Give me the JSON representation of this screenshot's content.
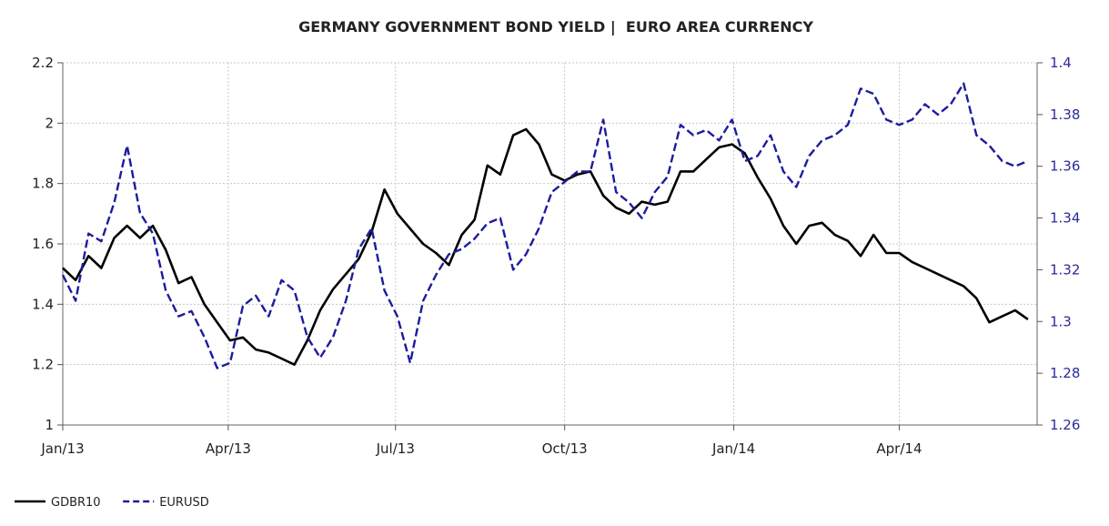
{
  "chart_data": {
    "type": "line",
    "title": "GERMANY GOVERNMENT BOND YIELD |  EURO AREA CURRENCY",
    "x_tick_labels": [
      "Jan/13",
      "Apr/13",
      "Jul/13",
      "Oct/13",
      "Jan/14",
      "Apr/14"
    ],
    "x_range": [
      "2013-01-01",
      "2014-06-15"
    ],
    "left_axis": {
      "ticks": [
        "1",
        "1.2",
        "1.4",
        "1.6",
        "1.8",
        "2",
        "2.2"
      ],
      "ylim": [
        1,
        2.2
      ]
    },
    "right_axis": {
      "ticks": [
        "1.26",
        "1.28",
        "1.3",
        "1.32",
        "1.34",
        "1.36",
        "1.38",
        "1.4"
      ],
      "ylim": [
        1.26,
        1.4
      ]
    },
    "grid": true,
    "legend_position": "bottom-left",
    "series": [
      {
        "name": "GDBR10",
        "axis": "left",
        "color": "#000000",
        "style": "solid",
        "points": [
          [
            "2013-01-01",
            1.52
          ],
          [
            "2013-01-08",
            1.48
          ],
          [
            "2013-01-15",
            1.56
          ],
          [
            "2013-01-22",
            1.52
          ],
          [
            "2013-01-29",
            1.62
          ],
          [
            "2013-02-05",
            1.66
          ],
          [
            "2013-02-12",
            1.62
          ],
          [
            "2013-02-19",
            1.66
          ],
          [
            "2013-02-26",
            1.58
          ],
          [
            "2013-03-05",
            1.47
          ],
          [
            "2013-03-12",
            1.49
          ],
          [
            "2013-03-19",
            1.4
          ],
          [
            "2013-03-26",
            1.34
          ],
          [
            "2013-04-02",
            1.28
          ],
          [
            "2013-04-09",
            1.29
          ],
          [
            "2013-04-16",
            1.25
          ],
          [
            "2013-04-23",
            1.24
          ],
          [
            "2013-04-30",
            1.22
          ],
          [
            "2013-05-07",
            1.2
          ],
          [
            "2013-05-14",
            1.28
          ],
          [
            "2013-05-21",
            1.38
          ],
          [
            "2013-05-28",
            1.45
          ],
          [
            "2013-06-04",
            1.5
          ],
          [
            "2013-06-11",
            1.55
          ],
          [
            "2013-06-18",
            1.64
          ],
          [
            "2013-06-25",
            1.78
          ],
          [
            "2013-07-02",
            1.7
          ],
          [
            "2013-07-09",
            1.65
          ],
          [
            "2013-07-16",
            1.6
          ],
          [
            "2013-07-23",
            1.57
          ],
          [
            "2013-07-30",
            1.53
          ],
          [
            "2013-08-06",
            1.63
          ],
          [
            "2013-08-13",
            1.68
          ],
          [
            "2013-08-20",
            1.86
          ],
          [
            "2013-08-27",
            1.83
          ],
          [
            "2013-09-03",
            1.96
          ],
          [
            "2013-09-10",
            1.98
          ],
          [
            "2013-09-17",
            1.93
          ],
          [
            "2013-09-24",
            1.83
          ],
          [
            "2013-10-01",
            1.81
          ],
          [
            "2013-10-08",
            1.83
          ],
          [
            "2013-10-15",
            1.84
          ],
          [
            "2013-10-22",
            1.76
          ],
          [
            "2013-10-29",
            1.72
          ],
          [
            "2013-11-05",
            1.7
          ],
          [
            "2013-11-12",
            1.74
          ],
          [
            "2013-11-19",
            1.73
          ],
          [
            "2013-11-26",
            1.74
          ],
          [
            "2013-12-03",
            1.84
          ],
          [
            "2013-12-10",
            1.84
          ],
          [
            "2013-12-17",
            1.88
          ],
          [
            "2013-12-24",
            1.92
          ],
          [
            "2013-12-31",
            1.93
          ],
          [
            "2014-01-07",
            1.9
          ],
          [
            "2014-01-14",
            1.82
          ],
          [
            "2014-01-21",
            1.75
          ],
          [
            "2014-01-28",
            1.66
          ],
          [
            "2014-02-04",
            1.6
          ],
          [
            "2014-02-11",
            1.66
          ],
          [
            "2014-02-18",
            1.67
          ],
          [
            "2014-02-25",
            1.63
          ],
          [
            "2014-03-04",
            1.61
          ],
          [
            "2014-03-11",
            1.56
          ],
          [
            "2014-03-18",
            1.63
          ],
          [
            "2014-03-25",
            1.57
          ],
          [
            "2014-04-01",
            1.57
          ],
          [
            "2014-04-08",
            1.54
          ],
          [
            "2014-04-15",
            1.52
          ],
          [
            "2014-04-22",
            1.5
          ],
          [
            "2014-04-29",
            1.48
          ],
          [
            "2014-05-06",
            1.46
          ],
          [
            "2014-05-13",
            1.42
          ],
          [
            "2014-05-20",
            1.34
          ],
          [
            "2014-05-27",
            1.36
          ],
          [
            "2014-06-03",
            1.38
          ],
          [
            "2014-06-10",
            1.35
          ]
        ]
      },
      {
        "name": "EURUSD",
        "axis": "right",
        "color": "#1c1c9c",
        "style": "dashed",
        "points": [
          [
            "2013-01-01",
            1.318
          ],
          [
            "2013-01-08",
            1.308
          ],
          [
            "2013-01-15",
            1.334
          ],
          [
            "2013-01-22",
            1.331
          ],
          [
            "2013-01-29",
            1.346
          ],
          [
            "2013-02-05",
            1.368
          ],
          [
            "2013-02-12",
            1.342
          ],
          [
            "2013-02-19",
            1.334
          ],
          [
            "2013-02-26",
            1.312
          ],
          [
            "2013-03-05",
            1.302
          ],
          [
            "2013-03-12",
            1.304
          ],
          [
            "2013-03-19",
            1.294
          ],
          [
            "2013-03-26",
            1.282
          ],
          [
            "2013-04-02",
            1.284
          ],
          [
            "2013-04-09",
            1.306
          ],
          [
            "2013-04-16",
            1.31
          ],
          [
            "2013-04-23",
            1.302
          ],
          [
            "2013-04-30",
            1.316
          ],
          [
            "2013-05-07",
            1.312
          ],
          [
            "2013-05-14",
            1.294
          ],
          [
            "2013-05-21",
            1.286
          ],
          [
            "2013-05-28",
            1.294
          ],
          [
            "2013-06-04",
            1.308
          ],
          [
            "2013-06-11",
            1.328
          ],
          [
            "2013-06-18",
            1.336
          ],
          [
            "2013-06-25",
            1.312
          ],
          [
            "2013-07-02",
            1.302
          ],
          [
            "2013-07-09",
            1.284
          ],
          [
            "2013-07-16",
            1.308
          ],
          [
            "2013-07-23",
            1.318
          ],
          [
            "2013-07-30",
            1.326
          ],
          [
            "2013-08-06",
            1.328
          ],
          [
            "2013-08-13",
            1.332
          ],
          [
            "2013-08-20",
            1.338
          ],
          [
            "2013-08-27",
            1.34
          ],
          [
            "2013-09-03",
            1.32
          ],
          [
            "2013-09-10",
            1.326
          ],
          [
            "2013-09-17",
            1.336
          ],
          [
            "2013-09-24",
            1.35
          ],
          [
            "2013-10-01",
            1.354
          ],
          [
            "2013-10-08",
            1.358
          ],
          [
            "2013-10-15",
            1.358
          ],
          [
            "2013-10-22",
            1.378
          ],
          [
            "2013-10-29",
            1.35
          ],
          [
            "2013-11-05",
            1.346
          ],
          [
            "2013-11-12",
            1.34
          ],
          [
            "2013-11-19",
            1.35
          ],
          [
            "2013-11-26",
            1.356
          ],
          [
            "2013-12-03",
            1.376
          ],
          [
            "2013-12-10",
            1.372
          ],
          [
            "2013-12-17",
            1.374
          ],
          [
            "2013-12-24",
            1.37
          ],
          [
            "2013-12-31",
            1.378
          ],
          [
            "2014-01-07",
            1.362
          ],
          [
            "2014-01-14",
            1.364
          ],
          [
            "2014-01-21",
            1.372
          ],
          [
            "2014-01-28",
            1.358
          ],
          [
            "2014-02-04",
            1.352
          ],
          [
            "2014-02-11",
            1.364
          ],
          [
            "2014-02-18",
            1.37
          ],
          [
            "2014-02-25",
            1.372
          ],
          [
            "2014-03-04",
            1.376
          ],
          [
            "2014-03-11",
            1.39
          ],
          [
            "2014-03-18",
            1.388
          ],
          [
            "2014-03-25",
            1.378
          ],
          [
            "2014-04-01",
            1.376
          ],
          [
            "2014-04-08",
            1.378
          ],
          [
            "2014-04-15",
            1.384
          ],
          [
            "2014-04-22",
            1.38
          ],
          [
            "2014-04-29",
            1.384
          ],
          [
            "2014-05-06",
            1.392
          ],
          [
            "2014-05-13",
            1.372
          ],
          [
            "2014-05-20",
            1.368
          ],
          [
            "2014-05-27",
            1.362
          ],
          [
            "2014-06-03",
            1.36
          ],
          [
            "2014-06-10",
            1.362
          ]
        ]
      }
    ]
  }
}
